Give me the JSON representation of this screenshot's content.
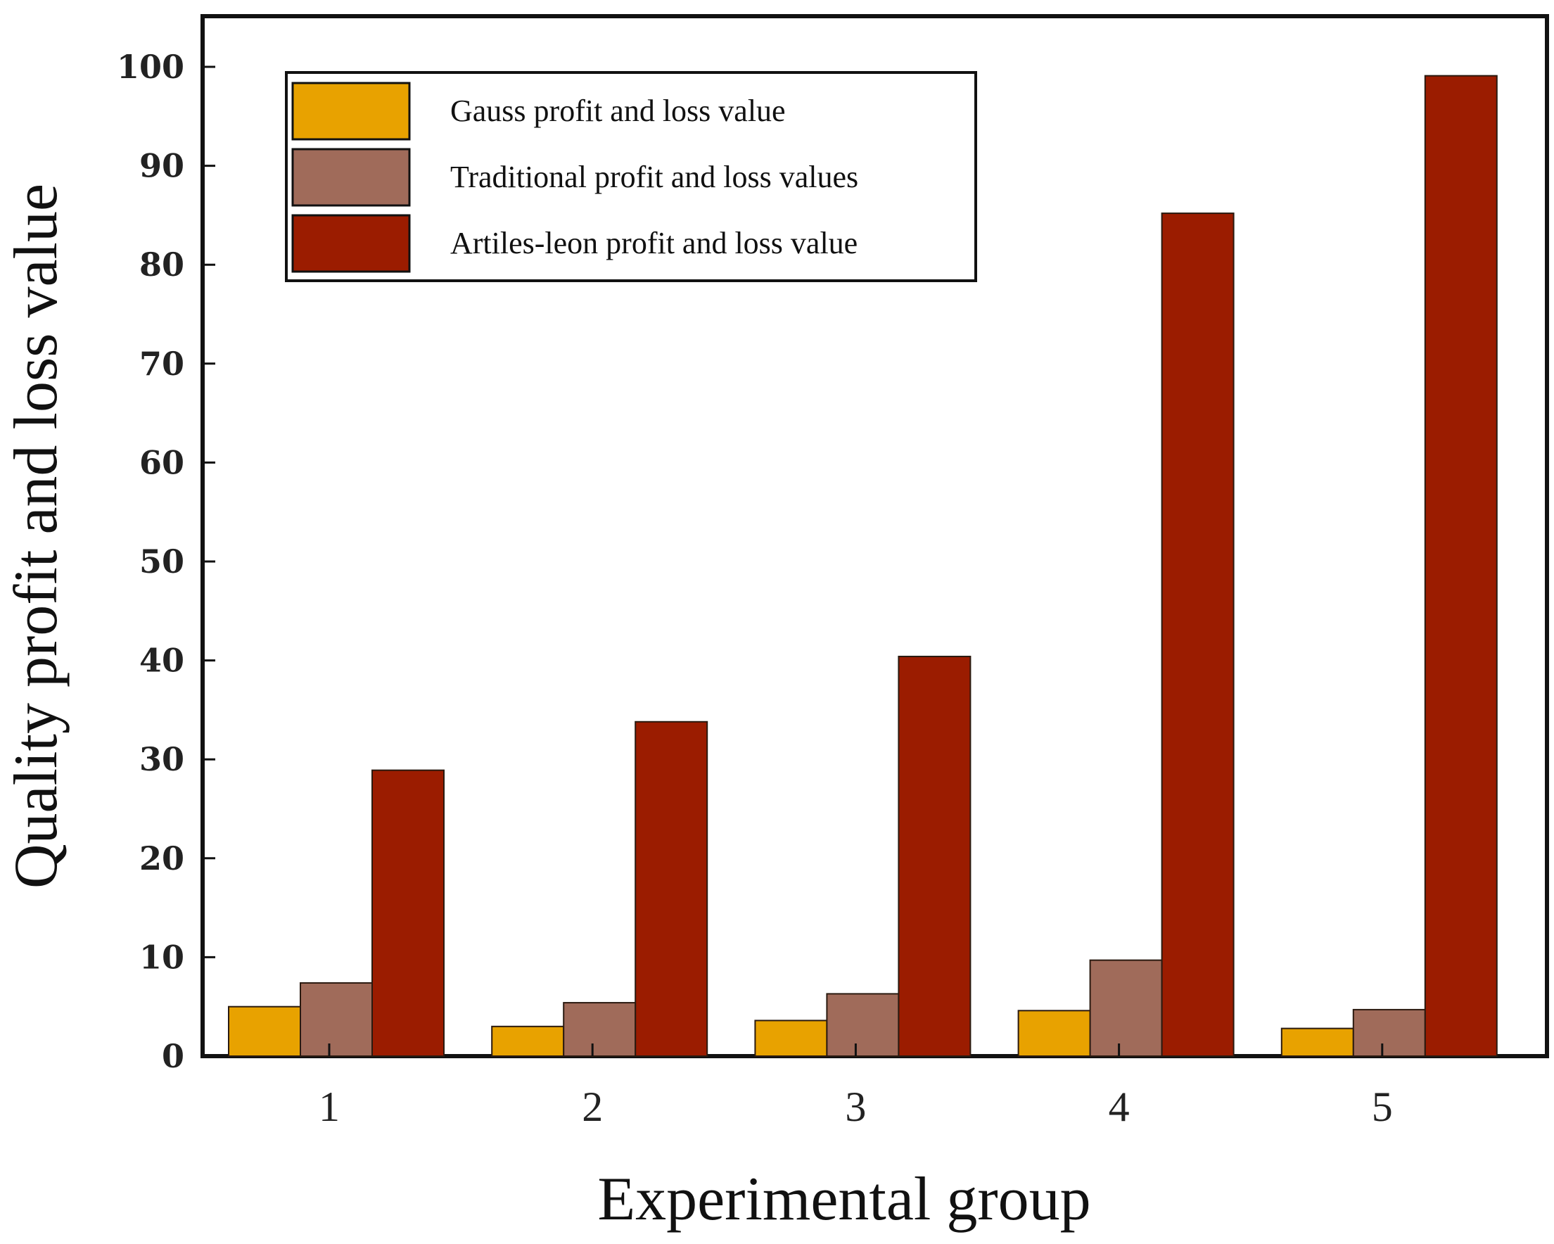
{
  "chart_data": {
    "type": "bar",
    "title": "",
    "xlabel": "Experimental group",
    "ylabel": "Quality profit and loss value",
    "categories": [
      "1",
      "2",
      "3",
      "4",
      "5"
    ],
    "ylim": [
      0,
      105
    ],
    "yticks": [
      0,
      10,
      20,
      30,
      40,
      50,
      60,
      70,
      80,
      90,
      100
    ],
    "grid": false,
    "legend_position": "top-left",
    "series": [
      {
        "name": "Gauss profit and loss value",
        "color": "#E8A200",
        "values": [
          5.0,
          3.0,
          3.6,
          4.6,
          2.8
        ]
      },
      {
        "name": "Traditional profit and loss values",
        "color": "#A06B5A",
        "values": [
          7.4,
          5.4,
          6.3,
          9.7,
          4.7
        ]
      },
      {
        "name": "Artiles-leon profit and loss value",
        "color": "#9B1C00",
        "values": [
          28.9,
          33.8,
          40.4,
          85.2,
          99.1
        ]
      }
    ]
  }
}
